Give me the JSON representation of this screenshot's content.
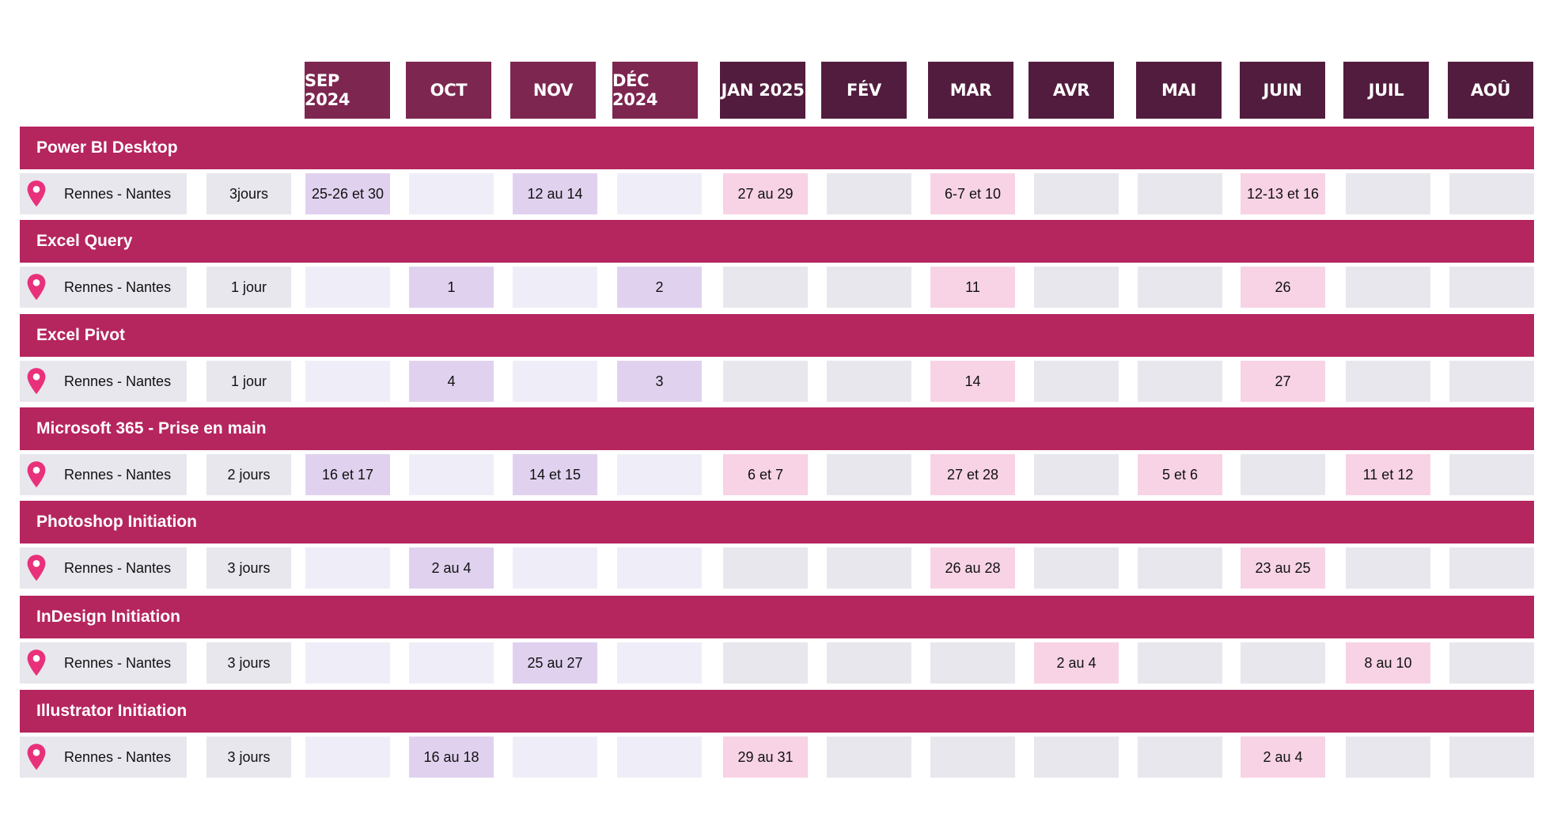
{
  "months": [
    {
      "label": "SEP 2024",
      "color": "#7d2650"
    },
    {
      "label": "OCT",
      "color": "#7d2650"
    },
    {
      "label": "NOV",
      "color": "#7d2650"
    },
    {
      "label": "DÉC 2024",
      "color": "#7d2650"
    },
    {
      "label": "JAN 2025",
      "color": "#521c3e"
    },
    {
      "label": "FÉV",
      "color": "#521c3e"
    },
    {
      "label": "MAR",
      "color": "#521c3e"
    },
    {
      "label": "AVR",
      "color": "#521c3e"
    },
    {
      "label": "MAI",
      "color": "#521c3e"
    },
    {
      "label": "JUIN",
      "color": "#521c3e"
    },
    {
      "label": "JUIL",
      "color": "#521c3e"
    },
    {
      "label": "AOÛ",
      "color": "#521c3e"
    }
  ],
  "colors": {
    "course_bar": "#b5255e",
    "pin": "#e8317a",
    "location_cell": "#e8e7ee",
    "empty_autumn": "#efeef8",
    "empty_winter_summer": "#e8e7ee",
    "date_autumn": "#e0d2ef",
    "date_winter_summer": "#f7d3e5"
  },
  "courses": [
    {
      "name": "Power BI Desktop",
      "location": "Rennes - Nantes",
      "duration": "3jours",
      "dates": [
        "25-26 et 30",
        "",
        "12 au 14",
        "",
        "27 au 29",
        "",
        "6-7 et 10",
        "",
        "",
        "12-13 et 16",
        "",
        ""
      ]
    },
    {
      "name": "Excel Query",
      "location": "Rennes - Nantes",
      "duration": "1 jour",
      "dates": [
        "",
        "1",
        "",
        "2",
        "",
        "",
        "11",
        "",
        "",
        "26",
        "",
        ""
      ]
    },
    {
      "name": "Excel Pivot",
      "location": "Rennes - Nantes",
      "duration": "1 jour",
      "dates": [
        "",
        "4",
        "",
        "3",
        "",
        "",
        "14",
        "",
        "",
        "27",
        "",
        ""
      ]
    },
    {
      "name": "Microsoft 365 - Prise en main",
      "location": "Rennes - Nantes",
      "duration": "2 jours",
      "dates": [
        "16 et 17",
        "",
        "14 et 15",
        "",
        "6 et 7",
        "",
        "27 et 28",
        "",
        "5 et 6",
        "",
        "11 et 12",
        ""
      ]
    },
    {
      "name": "Photoshop Initiation",
      "location": "Rennes - Nantes",
      "duration": "3 jours",
      "dates": [
        "",
        "2 au 4",
        "",
        "",
        "",
        "",
        "26 au 28",
        "",
        "",
        "23 au 25",
        "",
        ""
      ]
    },
    {
      "name": "InDesign Initiation",
      "location": "Rennes - Nantes",
      "duration": "3 jours",
      "dates": [
        "",
        "",
        "25 au 27",
        "",
        "",
        "",
        "",
        "2 au 4",
        "",
        "",
        "8 au 10",
        ""
      ]
    },
    {
      "name": "Illustrator Initiation",
      "location": "Rennes - Nantes",
      "duration": "3 jours",
      "dates": [
        "",
        "16 au 18",
        "",
        "",
        "29 au 31",
        "",
        "",
        "",
        "",
        "2 au 4",
        "",
        ""
      ]
    }
  ]
}
